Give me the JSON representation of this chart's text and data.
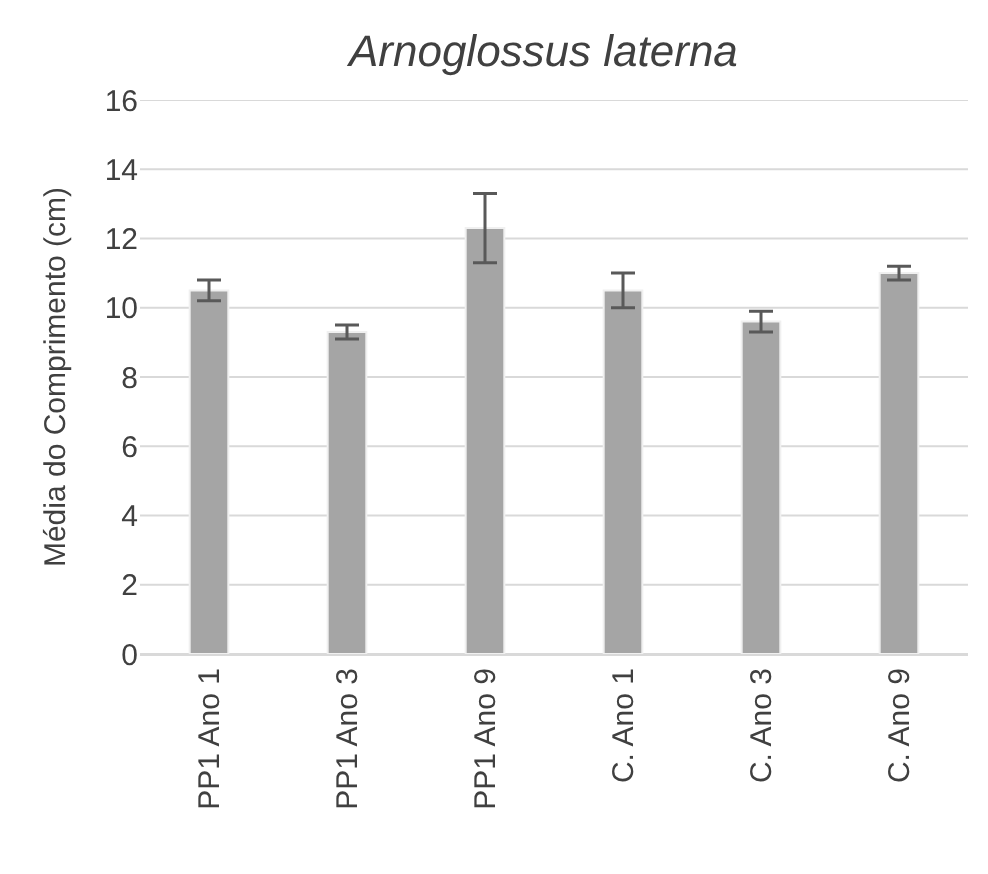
{
  "chart_data": {
    "type": "bar",
    "title": "Arnoglossus laterna",
    "ylabel": "Média do Comprimento (cm)",
    "categories": [
      "PP1 Ano 1",
      "PP1 Ano 3",
      "PP1 Ano 9",
      "C. Ano 1",
      "C. Ano 3",
      "C. Ano 9"
    ],
    "values": [
      10.5,
      9.3,
      12.3,
      10.5,
      9.6,
      11.0
    ],
    "errors": [
      0.3,
      0.2,
      1.0,
      0.5,
      0.3,
      0.2
    ],
    "color": "#a5a5a5",
    "ylim": [
      0,
      16
    ],
    "yticks": [
      0,
      2,
      4,
      6,
      8,
      10,
      12,
      14,
      16
    ],
    "grid": "y"
  }
}
